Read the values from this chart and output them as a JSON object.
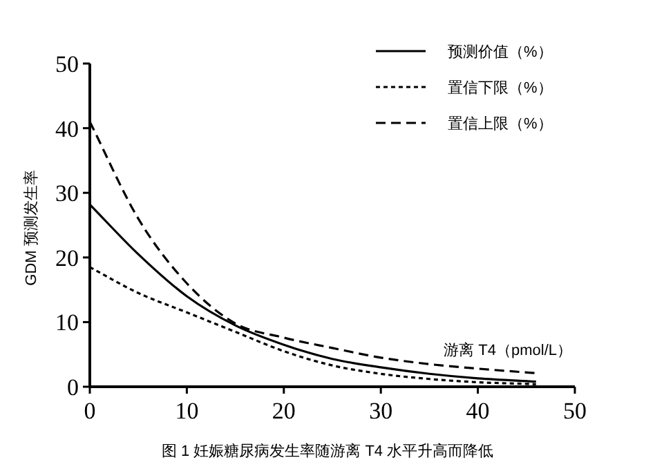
{
  "chart_data": {
    "type": "line",
    "xlabel": "游离 T4（pmol/L）",
    "ylabel": "GDM 预测发生率",
    "annotations": [
      "图 1 妊娠糖尿病发生率随游离 T4 水平升高而降低"
    ],
    "x": [
      0,
      5,
      10,
      15,
      20,
      25,
      30,
      35,
      40,
      46
    ],
    "series": [
      {
        "name": "预测价值（%）",
        "color": "#000000",
        "line_style": "solid",
        "values": [
          28.2,
          20.5,
          14,
          9.5,
          6.5,
          4.3,
          3,
          2,
          1.3,
          0.8
        ]
      },
      {
        "name": "置信下限（%）",
        "color": "#000000",
        "line_style": "dotted",
        "values": [
          18.5,
          14.5,
          11.5,
          8.5,
          5.5,
          3.3,
          2,
          1.2,
          0.7,
          0.4
        ]
      },
      {
        "name": "置信上限（%）",
        "color": "#000000",
        "line_style": "dashed",
        "values": [
          41,
          26,
          16,
          9.8,
          7.6,
          6,
          4.5,
          3.5,
          2.8,
          2.1
        ]
      }
    ],
    "xlim": [
      0,
      50
    ],
    "ylim": [
      0,
      50
    ],
    "xticks": [
      0,
      10,
      20,
      30,
      40,
      50
    ],
    "yticks": [
      0,
      10,
      20,
      30,
      40,
      50
    ],
    "grid": false,
    "legend": "top right",
    "marker": "none"
  }
}
